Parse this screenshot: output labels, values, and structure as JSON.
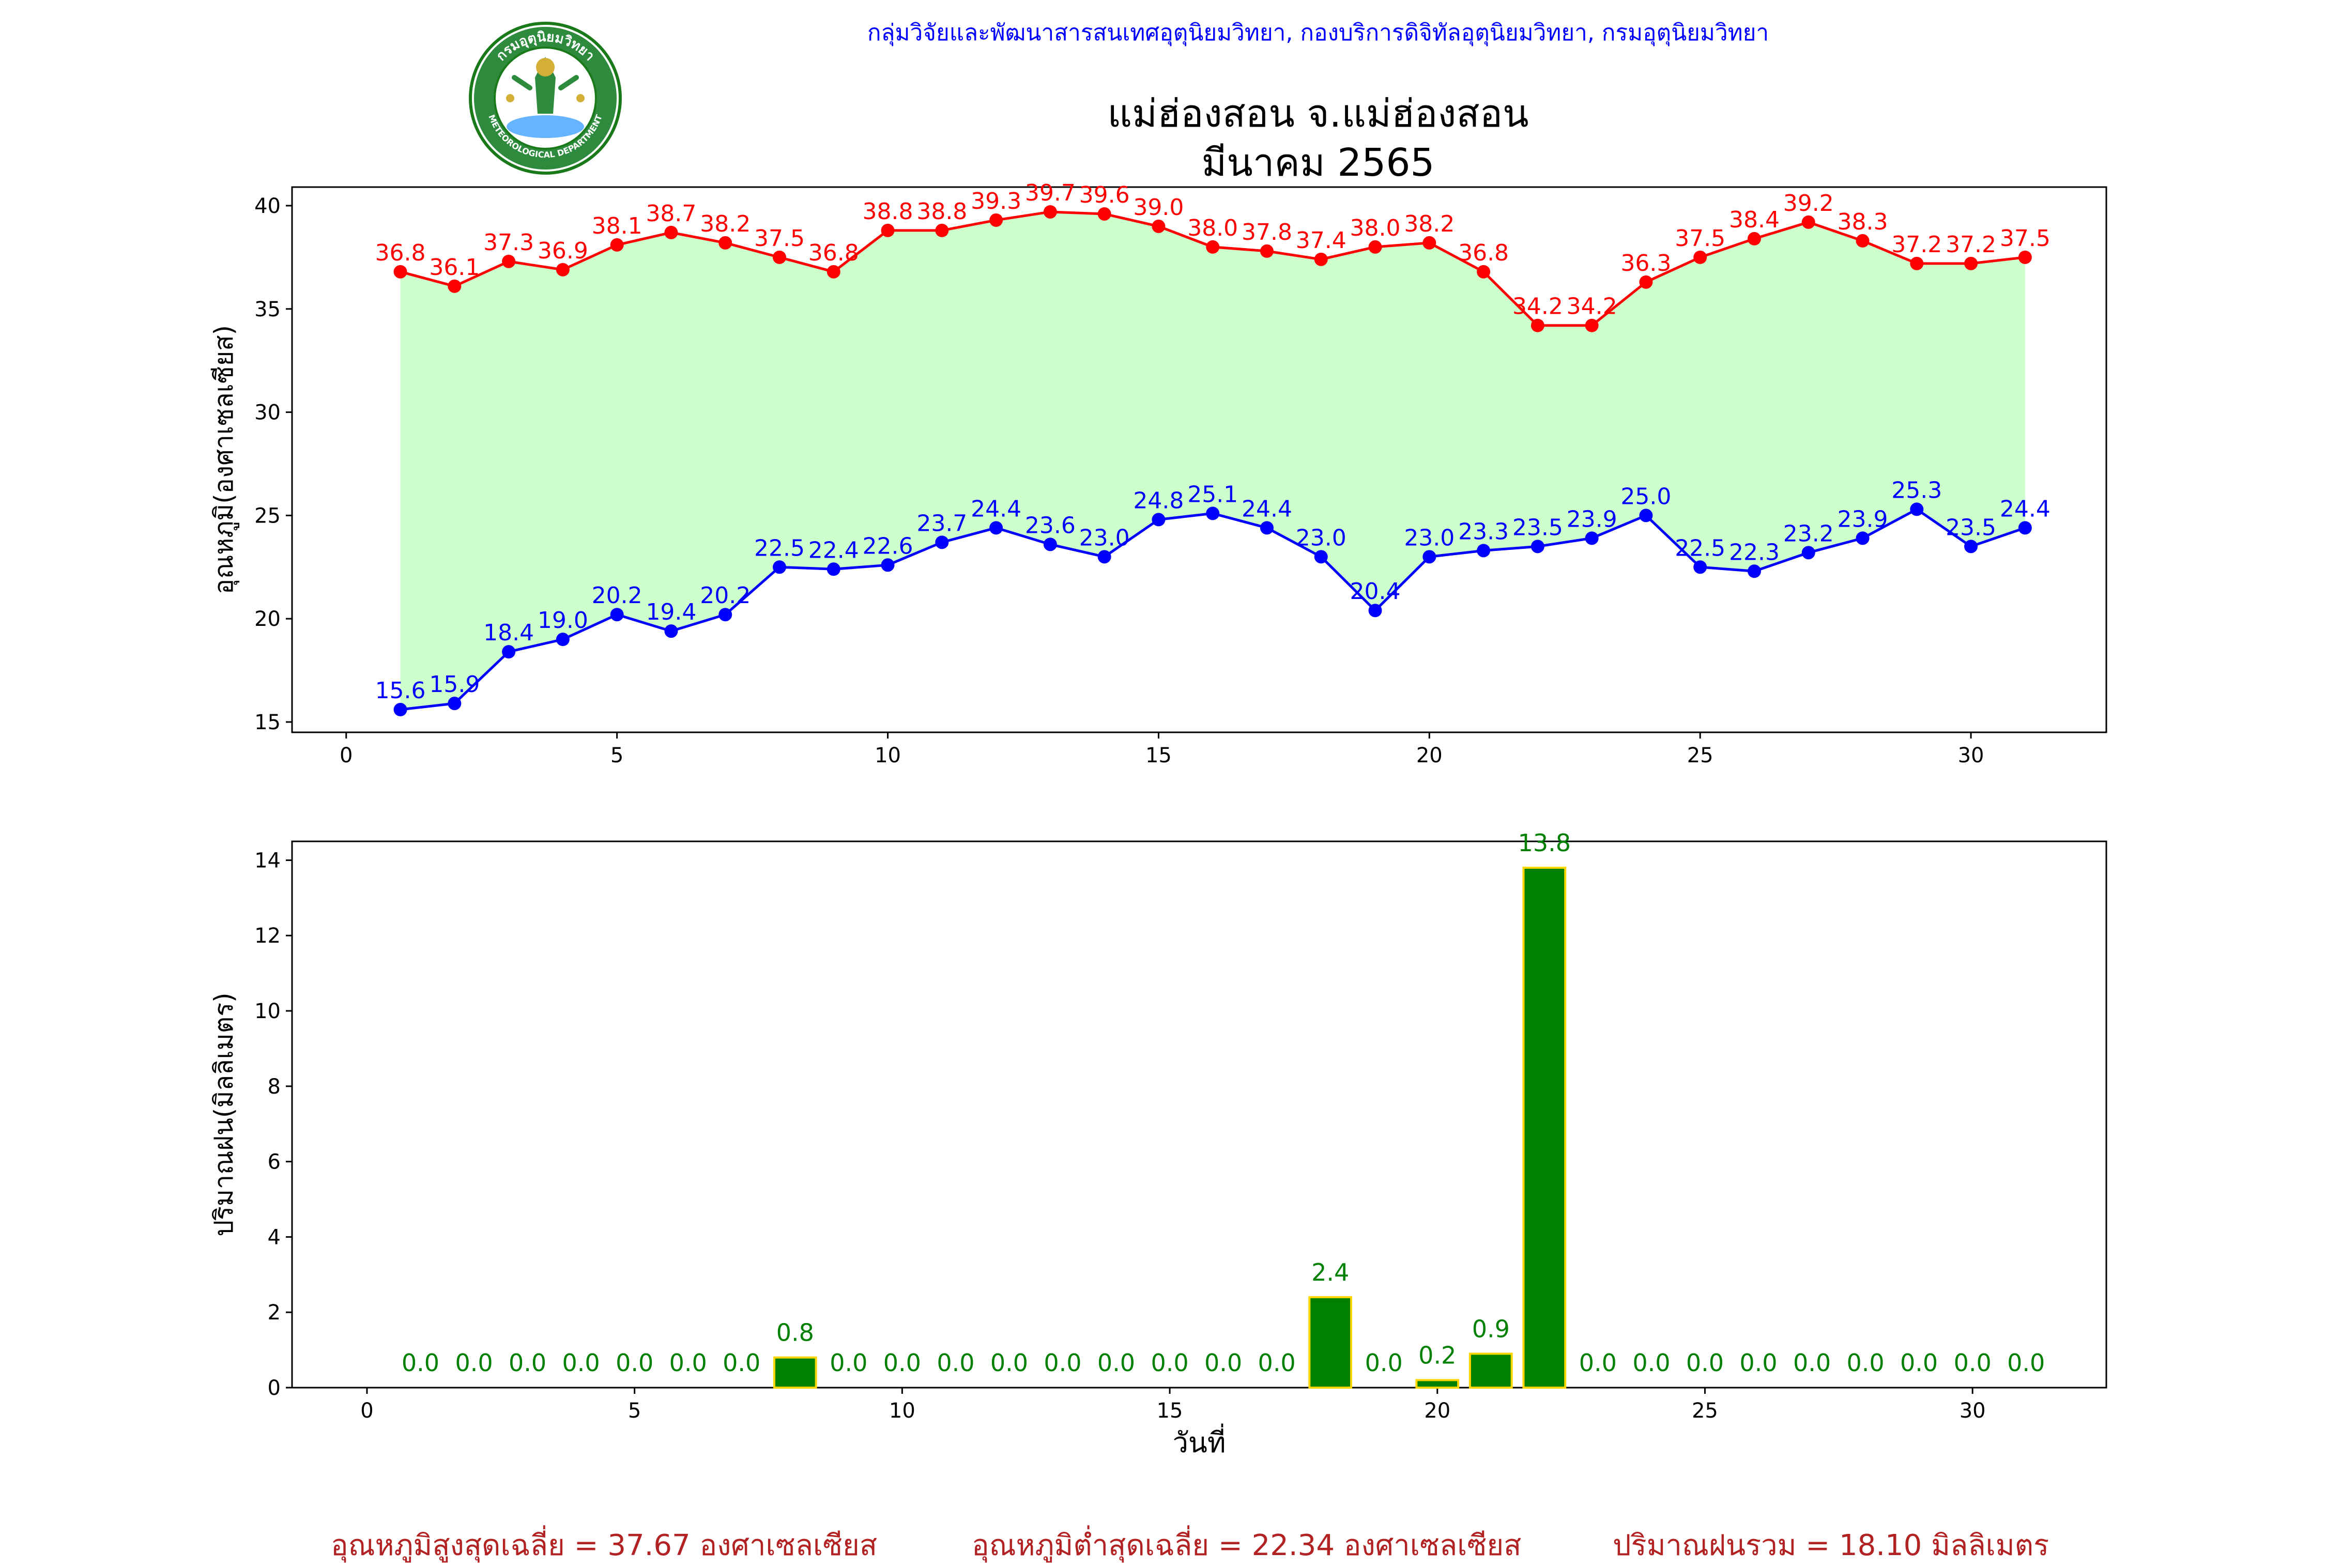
{
  "header": {
    "department": "กลุ่มวิจัยและพัฒนาสารสนเทศอุตุนิยมวิทยา, กองบริการดิจิทัลอุตุนิยมวิทยา, กรมอุตุนิยมวิทยา",
    "station": "แม่ฮ่องสอน จ.แม่ฮ่องสอน",
    "month": "มีนาคม 2565",
    "logo_text_top": "กรมอุตุนิยมวิทยา",
    "logo_text_bottom": "METEOROLOGICAL DEPARTMENT"
  },
  "colors": {
    "max_line": "#ff0000",
    "min_line": "#0000ff",
    "band_fill": "#ccffcc",
    "rain_bar": "#008000",
    "rain_edge": "#ffd700",
    "rain_label": "#008000",
    "footer": "#b22222"
  },
  "chart_data": [
    {
      "type": "line",
      "ylabel": "อุณหภูมิ(องศาเซลเซียส)",
      "xlabel": "",
      "xlim": [
        -1,
        32.5
      ],
      "ylim": [
        14.5,
        40.9
      ],
      "xticks": [
        0,
        5,
        10,
        15,
        20,
        25,
        30
      ],
      "yticks": [
        15,
        20,
        25,
        30,
        35,
        40
      ],
      "fill_between": true,
      "x": [
        1,
        2,
        3,
        4,
        5,
        6,
        7,
        8,
        9,
        10,
        11,
        12,
        13,
        14,
        15,
        16,
        17,
        18,
        19,
        20,
        21,
        22,
        23,
        24,
        25,
        26,
        27,
        28,
        29,
        30,
        31
      ],
      "series": [
        {
          "key": "max",
          "values": [
            36.8,
            36.1,
            37.3,
            36.9,
            38.1,
            38.7,
            38.2,
            37.5,
            36.8,
            38.8,
            38.8,
            39.3,
            39.7,
            39.6,
            39.0,
            38.0,
            37.8,
            37.4,
            38.0,
            38.2,
            36.8,
            34.2,
            34.2,
            36.3,
            37.5,
            38.4,
            39.2,
            38.3,
            37.2,
            37.2,
            37.5
          ]
        },
        {
          "key": "min",
          "values": [
            15.6,
            15.9,
            18.4,
            19.0,
            20.2,
            19.4,
            20.2,
            22.5,
            22.4,
            22.6,
            23.7,
            24.4,
            23.6,
            23.0,
            24.8,
            25.1,
            24.4,
            23.0,
            20.4,
            23.0,
            23.3,
            23.5,
            23.9,
            25.0,
            22.5,
            22.3,
            23.2,
            23.9,
            25.3,
            23.5,
            24.4
          ]
        }
      ]
    },
    {
      "type": "bar",
      "ylabel": "ปริมาณฝน(มิลลิเมตร)",
      "xlabel": "วันที่",
      "xlim": [
        -1.4,
        32.5
      ],
      "ylim": [
        0,
        14.5
      ],
      "xticks": [
        0,
        5,
        10,
        15,
        20,
        25,
        30
      ],
      "yticks": [
        0,
        2,
        4,
        6,
        8,
        10,
        12,
        14
      ],
      "x": [
        1,
        2,
        3,
        4,
        5,
        6,
        7,
        8,
        9,
        10,
        11,
        12,
        13,
        14,
        15,
        16,
        17,
        18,
        19,
        20,
        21,
        22,
        23,
        24,
        25,
        26,
        27,
        28,
        29,
        30,
        31
      ],
      "values": [
        0.0,
        0.0,
        0.0,
        0.0,
        0.0,
        0.0,
        0.0,
        0.8,
        0.0,
        0.0,
        0.0,
        0.0,
        0.0,
        0.0,
        0.0,
        0.0,
        0.0,
        2.4,
        0.0,
        0.2,
        0.9,
        13.8,
        0.0,
        0.0,
        0.0,
        0.0,
        0.0,
        0.0,
        0.0,
        0.0,
        0.0
      ]
    }
  ],
  "footer": {
    "avg_max": "อุณหภูมิสูงสุดเฉลี่ย = 37.67 องศาเซลเซียส",
    "avg_min": "อุณหภูมิต่ำสุดเฉลี่ย = 22.34 องศาเซลเซียส",
    "total_rain": "ปริมาณฝนรวม = 18.10 มิลลิเมตร"
  }
}
